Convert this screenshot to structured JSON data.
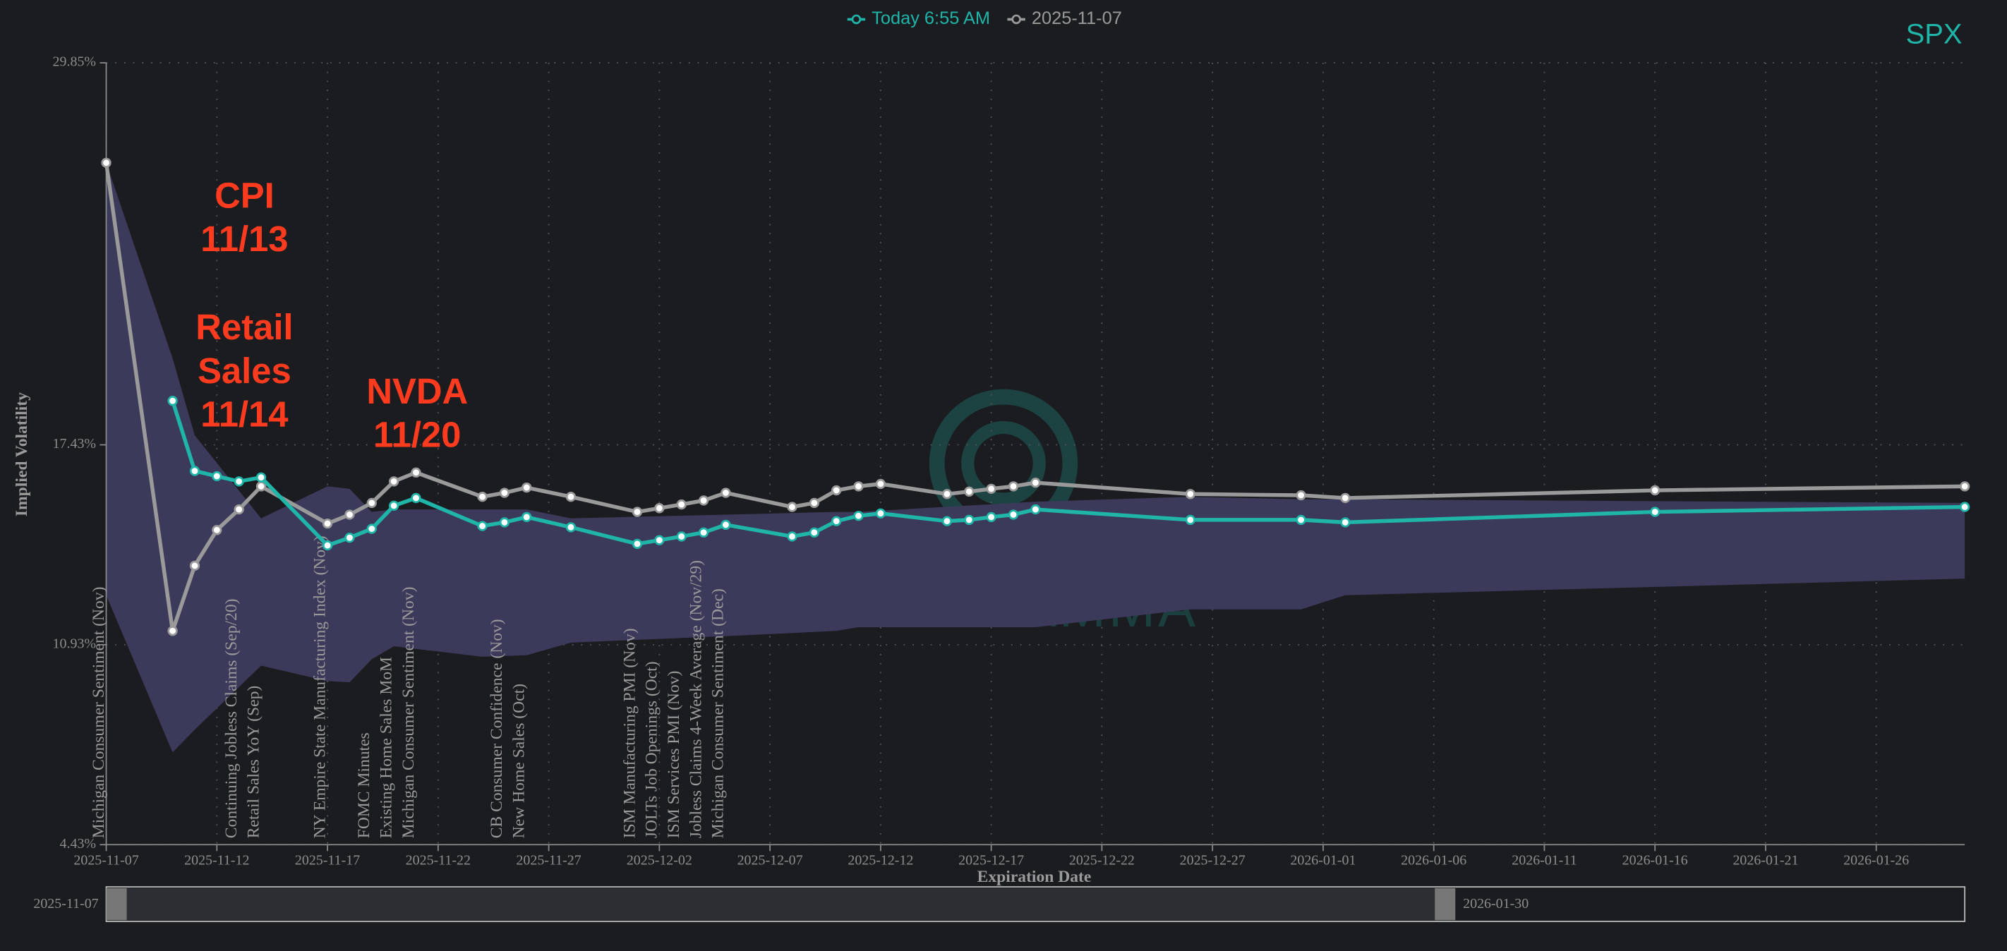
{
  "chart_data": {
    "type": "line",
    "symbol": "SPX",
    "watermark": "SPOTGAMMA",
    "x_label": "Expiration Date",
    "y_label": "Implied Volatility",
    "xlim": [
      "2025-11-07",
      "2026-01-30"
    ],
    "xticks": [
      "2025-11-07",
      "2025-11-12",
      "2025-11-17",
      "2025-11-22",
      "2025-11-27",
      "2025-12-02",
      "2025-12-07",
      "2025-12-12",
      "2025-12-17",
      "2025-12-22",
      "2025-12-27",
      "2026-01-01",
      "2026-01-06",
      "2026-01-11",
      "2026-01-16",
      "2026-01-21",
      "2026-01-26"
    ],
    "ylim": [
      4.43,
      29.85
    ],
    "yticks": [
      {
        "value": 4.43,
        "label": "4.43%"
      },
      {
        "value": 10.93,
        "label": "10.93%"
      },
      {
        "value": 17.43,
        "label": "17.43%"
      },
      {
        "value": 29.85,
        "label": "29.85%"
      }
    ],
    "grid": true,
    "x": [
      "2025-11-07",
      "2025-11-10",
      "2025-11-11",
      "2025-11-12",
      "2025-11-13",
      "2025-11-14",
      "2025-11-17",
      "2025-11-18",
      "2025-11-19",
      "2025-11-20",
      "2025-11-21",
      "2025-11-24",
      "2025-11-25",
      "2025-11-26",
      "2025-11-28",
      "2025-12-01",
      "2025-12-02",
      "2025-12-03",
      "2025-12-04",
      "2025-12-05",
      "2025-12-08",
      "2025-12-09",
      "2025-12-10",
      "2025-12-11",
      "2025-12-12",
      "2025-12-15",
      "2025-12-16",
      "2025-12-17",
      "2025-12-18",
      "2025-12-19",
      "2025-12-26",
      "2025-12-31",
      "2026-01-02",
      "2026-01-16",
      "2026-01-30"
    ],
    "series": [
      {
        "name": "Today 6:55 AM",
        "color": "#1fb5a8",
        "values": [
          null,
          18.86,
          16.58,
          16.41,
          16.24,
          16.37,
          14.16,
          14.41,
          14.7,
          15.45,
          15.7,
          14.79,
          14.91,
          15.08,
          14.75,
          14.21,
          14.33,
          14.45,
          14.58,
          14.83,
          14.45,
          14.58,
          14.95,
          15.12,
          15.2,
          14.95,
          14.99,
          15.08,
          15.16,
          15.33,
          14.99,
          14.99,
          14.91,
          15.25,
          15.41
        ]
      },
      {
        "name": "2025-11-07",
        "color": "#9a9a9a",
        "values": [
          26.6,
          11.38,
          13.5,
          14.66,
          15.33,
          16.08,
          14.87,
          15.16,
          15.54,
          16.24,
          16.53,
          15.74,
          15.87,
          16.04,
          15.74,
          15.25,
          15.37,
          15.49,
          15.62,
          15.87,
          15.41,
          15.54,
          15.95,
          16.08,
          16.16,
          15.83,
          15.91,
          16.0,
          16.08,
          16.2,
          15.83,
          15.79,
          15.7,
          15.95,
          16.08
        ]
      }
    ],
    "band": {
      "color": "#3c3a5b",
      "x": [
        "2025-11-07",
        "2025-11-10",
        "2025-11-11",
        "2025-11-14",
        "2025-11-17",
        "2025-11-18",
        "2025-11-19",
        "2025-11-20",
        "2025-11-24",
        "2025-11-26",
        "2025-11-28",
        "2025-12-05",
        "2025-12-10",
        "2025-12-11",
        "2025-12-19",
        "2025-12-26",
        "2025-12-31",
        "2026-01-02",
        "2026-01-30"
      ],
      "upper": [
        26.6,
        20.24,
        17.74,
        15.04,
        16.08,
        16.0,
        15.25,
        15.33,
        15.33,
        15.33,
        15.04,
        15.16,
        15.25,
        15.25,
        15.58,
        15.74,
        15.66,
        15.66,
        15.54
      ],
      "lower": [
        12.54,
        7.43,
        8.17,
        10.25,
        9.75,
        9.71,
        10.46,
        10.88,
        10.54,
        10.59,
        11.0,
        11.21,
        11.38,
        11.5,
        11.5,
        12.08,
        12.08,
        12.54,
        13.08
      ]
    },
    "events": [
      {
        "x": "2025-11-07",
        "label": "Michigan Consumer Sentiment (Nov)"
      },
      {
        "x": "2025-11-13",
        "label": "Continuing Jobless Claims (Sep/20)"
      },
      {
        "x": "2025-11-14",
        "label": "Retail Sales YoY (Sep)"
      },
      {
        "x": "2025-11-17",
        "label": "NY Empire State Manufacturing Index (Nov)"
      },
      {
        "x": "2025-11-19",
        "label": "FOMC Minutes"
      },
      {
        "x": "2025-11-20",
        "label": "Existing Home Sales MoM"
      },
      {
        "x": "2025-11-21",
        "label": "Michigan Consumer Sentiment (Nov)"
      },
      {
        "x": "2025-11-25",
        "label": "CB Consumer Confidence (Nov)"
      },
      {
        "x": "2025-11-26",
        "label": "New Home Sales (Oct)"
      },
      {
        "x": "2025-12-01",
        "label": "ISM Manufacturing PMI (Nov)"
      },
      {
        "x": "2025-12-02",
        "label": "JOLTs Job Openings (Oct)"
      },
      {
        "x": "2025-12-03",
        "label": "ISM Services PMI (Nov)"
      },
      {
        "x": "2025-12-04",
        "label": "Jobless Claims 4-Week Average (Nov/29)"
      },
      {
        "x": "2025-12-05",
        "label": "Michigan Consumer Sentiment (Dec)"
      }
    ],
    "annotations": [
      {
        "lines": [
          "CPI",
          "11/13"
        ]
      },
      {
        "lines": [
          "Retail",
          "Sales",
          "11/14"
        ]
      },
      {
        "lines": [
          "NVDA",
          "11/20"
        ]
      }
    ]
  }
}
